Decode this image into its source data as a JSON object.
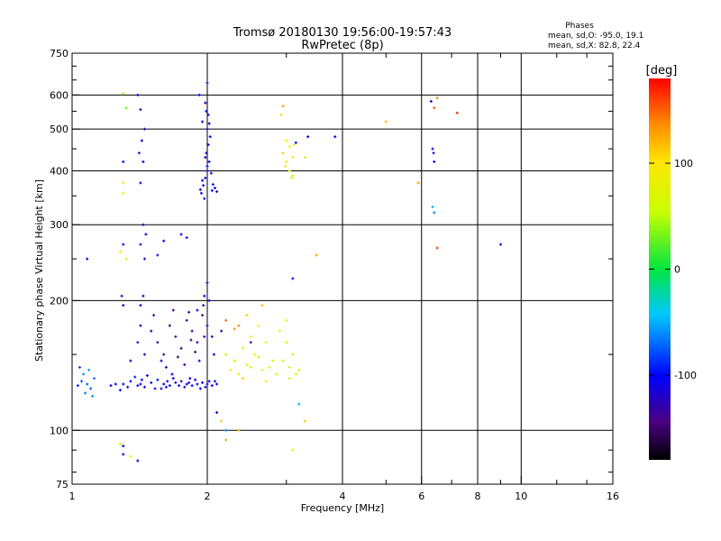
{
  "header": {
    "title": "Tromsø 20180130 19:56:00-19:57:43",
    "subtitle": "RwPretec (8p)",
    "stats_title": "Phases",
    "stats_line1": "mean, sd,O: -95.0, 19.1",
    "stats_line2": "mean, sd,X:  82.8, 22.4"
  },
  "colorbar": {
    "unit_label": "[deg]",
    "ticks": [
      {
        "value": 100,
        "label": "100"
      },
      {
        "value": 0,
        "label": "0"
      },
      {
        "value": -100,
        "label": "-100"
      }
    ],
    "range": [
      -180,
      180
    ]
  },
  "chart_data": {
    "type": "scatter",
    "xlabel": "Frequency [MHz]",
    "ylabel": "Stationary phase Virtual Height [km]",
    "x_scale": "log",
    "y_scale": "log",
    "xlim": [
      1,
      16
    ],
    "ylim": [
      75,
      750
    ],
    "x_ticks": [
      {
        "value": 1,
        "label": "1"
      },
      {
        "value": 2,
        "label": "2"
      },
      {
        "value": 4,
        "label": "4"
      },
      {
        "value": 6,
        "label": "6"
      },
      {
        "value": 8,
        "label": "8"
      },
      {
        "value": 10,
        "label": "10"
      },
      {
        "value": 16,
        "label": "16"
      }
    ],
    "x_grid": [
      2,
      4,
      6,
      8,
      10
    ],
    "y_ticks": [
      {
        "value": 75,
        "label": "75"
      },
      {
        "value": 100,
        "label": "100"
      },
      {
        "value": 200,
        "label": "200"
      },
      {
        "value": 300,
        "label": "300"
      },
      {
        "value": 400,
        "label": "400"
      },
      {
        "value": 500,
        "label": "500"
      },
      {
        "value": 600,
        "label": "600"
      },
      {
        "value": 750,
        "label": "750"
      }
    ],
    "y_grid": [
      100,
      200,
      300,
      400,
      500,
      600
    ],
    "points": [
      [
        1.05,
        130,
        -80
      ],
      [
        1.08,
        128,
        -70
      ],
      [
        1.06,
        135,
        -60
      ],
      [
        1.1,
        125,
        -75
      ],
      [
        1.04,
        140,
        -85
      ],
      [
        1.12,
        132,
        -70
      ],
      [
        1.07,
        122,
        -65
      ],
      [
        1.09,
        138,
        -55
      ],
      [
        1.03,
        127,
        -90
      ],
      [
        1.11,
        120,
        -60
      ],
      [
        1.3,
        128,
        -105
      ],
      [
        1.4,
        127,
        -110
      ],
      [
        1.5,
        129,
        -100
      ],
      [
        1.6,
        128,
        -115
      ],
      [
        1.7,
        129,
        -105
      ],
      [
        1.8,
        128,
        -110
      ],
      [
        1.9,
        128,
        -108
      ],
      [
        2.0,
        128,
        -112
      ],
      [
        2.1,
        128,
        -105
      ],
      [
        1.35,
        130,
        -100
      ],
      [
        1.45,
        126,
        -112
      ],
      [
        1.55,
        131,
        -98
      ],
      [
        1.65,
        127,
        -104
      ],
      [
        1.75,
        130,
        -118
      ],
      [
        1.85,
        127,
        -102
      ],
      [
        1.95,
        129,
        -110
      ],
      [
        2.05,
        127,
        -106
      ],
      [
        1.28,
        124,
        -100
      ],
      [
        1.38,
        133,
        -96
      ],
      [
        1.58,
        125,
        -108
      ],
      [
        1.68,
        132,
        -100
      ],
      [
        1.78,
        126,
        -114
      ],
      [
        1.88,
        131,
        -104
      ],
      [
        1.98,
        126,
        -110
      ],
      [
        1.25,
        128,
        -102
      ],
      [
        1.33,
        126,
        -109
      ],
      [
        1.43,
        131,
        -103
      ],
      [
        1.53,
        125,
        -111
      ],
      [
        1.63,
        130,
        -97
      ],
      [
        1.73,
        127,
        -107
      ],
      [
        1.83,
        132,
        -113
      ],
      [
        1.93,
        125,
        -101
      ],
      [
        2.08,
        130,
        -104
      ],
      [
        1.22,
        127,
        -99
      ],
      [
        1.42,
        128,
        -115
      ],
      [
        1.62,
        126,
        -103
      ],
      [
        1.82,
        129,
        -109
      ],
      [
        2.02,
        130,
        -99
      ],
      [
        1.47,
        134,
        -105
      ],
      [
        1.67,
        135,
        -100
      ],
      [
        1.5,
        170,
        -135
      ],
      [
        1.55,
        160,
        -140
      ],
      [
        1.6,
        150,
        -130
      ],
      [
        1.65,
        175,
        -145
      ],
      [
        1.7,
        165,
        -138
      ],
      [
        1.75,
        155,
        -150
      ],
      [
        1.8,
        180,
        -135
      ],
      [
        1.85,
        170,
        -142
      ],
      [
        1.9,
        160,
        -130
      ],
      [
        1.95,
        185,
        -140
      ],
      [
        2.0,
        175,
        -120
      ],
      [
        2.05,
        165,
        -125
      ],
      [
        1.58,
        145,
        -132
      ],
      [
        1.72,
        148,
        -144
      ],
      [
        1.88,
        152,
        -136
      ],
      [
        1.52,
        185,
        -128
      ],
      [
        1.68,
        190,
        -148
      ],
      [
        1.82,
        188,
        -125
      ],
      [
        1.96,
        195,
        -132
      ],
      [
        2.02,
        200,
        -118
      ],
      [
        1.4,
        160,
        -110
      ],
      [
        1.45,
        150,
        -125
      ],
      [
        1.35,
        145,
        -115
      ],
      [
        1.42,
        175,
        -120
      ],
      [
        1.62,
        140,
        -118
      ],
      [
        1.78,
        142,
        -135
      ],
      [
        1.92,
        145,
        -128
      ],
      [
        2.07,
        150,
        -115
      ],
      [
        1.97,
        165,
        -122
      ],
      [
        1.84,
        162,
        -146
      ],
      [
        1.94,
        355,
        -110
      ],
      [
        1.96,
        370,
        -115
      ],
      [
        1.98,
        385,
        -105
      ],
      [
        2.0,
        400,
        -112
      ],
      [
        2.02,
        420,
        -108
      ],
      [
        1.99,
        440,
        -118
      ],
      [
        2.01,
        460,
        -110
      ],
      [
        2.03,
        480,
        -105
      ],
      [
        2.0,
        500,
        -115
      ],
      [
        1.97,
        345,
        -112
      ],
      [
        2.05,
        360,
        -108
      ],
      [
        2.08,
        365,
        -102
      ],
      [
        2.1,
        358,
        -110
      ],
      [
        2.04,
        395,
        -118
      ],
      [
        1.95,
        380,
        -104
      ],
      [
        2.0,
        410,
        -95
      ],
      [
        1.98,
        430,
        -112
      ],
      [
        2.02,
        515,
        -108
      ],
      [
        1.93,
        362,
        -114
      ],
      [
        2.06,
        372,
        -106
      ],
      [
        1.92,
        600,
        -100
      ],
      [
        1.98,
        575,
        -110
      ],
      [
        2.0,
        640,
        -95
      ],
      [
        1.99,
        550,
        -108
      ],
      [
        2.01,
        540,
        -102
      ],
      [
        1.95,
        520,
        -115
      ],
      [
        1.4,
        600,
        -110
      ],
      [
        1.42,
        555,
        -120
      ],
      [
        1.45,
        500,
        -130
      ],
      [
        1.43,
        470,
        -105
      ],
      [
        1.41,
        440,
        -115
      ],
      [
        1.44,
        420,
        -110
      ],
      [
        1.42,
        375,
        -108
      ],
      [
        1.3,
        420,
        -100
      ],
      [
        1.44,
        300,
        -112
      ],
      [
        1.46,
        285,
        -108
      ],
      [
        1.42,
        270,
        -115
      ],
      [
        1.3,
        270,
        -100
      ],
      [
        1.45,
        250,
        -110
      ],
      [
        1.55,
        255,
        -115
      ],
      [
        1.6,
        275,
        -105
      ],
      [
        1.75,
        285,
        -110
      ],
      [
        1.8,
        280,
        -108
      ],
      [
        1.08,
        250,
        -110
      ],
      [
        1.29,
        205,
        -108
      ],
      [
        1.3,
        195,
        -112
      ],
      [
        1.44,
        205,
        -115
      ],
      [
        1.42,
        195,
        -110
      ],
      [
        1.9,
        190,
        -118
      ],
      [
        1.97,
        205,
        -112
      ],
      [
        2.0,
        220,
        -115
      ],
      [
        3.1,
        225,
        -108
      ],
      [
        2.2,
        150,
        60
      ],
      [
        2.3,
        145,
        70
      ],
      [
        2.4,
        155,
        65
      ],
      [
        2.5,
        140,
        75
      ],
      [
        2.6,
        148,
        60
      ],
      [
        2.25,
        138,
        80
      ],
      [
        2.35,
        135,
        70
      ],
      [
        2.45,
        142,
        60
      ],
      [
        2.55,
        150,
        80
      ],
      [
        2.65,
        138,
        65
      ],
      [
        2.75,
        140,
        70
      ],
      [
        2.85,
        135,
        75
      ],
      [
        2.95,
        145,
        60
      ],
      [
        3.05,
        140,
        65
      ],
      [
        3.15,
        135,
        70
      ],
      [
        2.5,
        165,
        90
      ],
      [
        2.6,
        175,
        100
      ],
      [
        2.7,
        160,
        85
      ],
      [
        2.9,
        170,
        95
      ],
      [
        3.0,
        180,
        75
      ],
      [
        2.45,
        185,
        110
      ],
      [
        2.65,
        195,
        120
      ],
      [
        2.3,
        172,
        130
      ],
      [
        3.0,
        160,
        55
      ],
      [
        3.1,
        150,
        60
      ],
      [
        2.8,
        145,
        70
      ],
      [
        3.05,
        132,
        65
      ],
      [
        3.2,
        138,
        60
      ],
      [
        2.4,
        132,
        110
      ],
      [
        2.7,
        130,
        90
      ],
      [
        2.2,
        180,
        150
      ],
      [
        2.5,
        160,
        -140
      ],
      [
        2.15,
        170,
        -135
      ],
      [
        2.35,
        175,
        140
      ],
      [
        3.0,
        470,
        100
      ],
      [
        2.95,
        440,
        110
      ],
      [
        3.05,
        455,
        95
      ],
      [
        3.1,
        430,
        80
      ],
      [
        3.0,
        420,
        105
      ],
      [
        3.05,
        400,
        70
      ],
      [
        3.1,
        390,
        65
      ],
      [
        3.08,
        385,
        60
      ],
      [
        2.98,
        410,
        85
      ],
      [
        3.12,
        460,
        90
      ],
      [
        2.95,
        565,
        130
      ],
      [
        2.92,
        540,
        105
      ],
      [
        3.15,
        465,
        -100
      ],
      [
        3.3,
        430,
        50
      ],
      [
        3.35,
        480,
        -110
      ],
      [
        3.85,
        480,
        -105
      ],
      [
        3.5,
        255,
        130
      ],
      [
        1.3,
        605,
        40
      ],
      [
        1.32,
        560,
        30
      ],
      [
        1.3,
        375,
        90
      ],
      [
        1.3,
        355,
        85
      ],
      [
        1.28,
        260,
        80
      ],
      [
        1.32,
        250,
        75
      ],
      [
        2.2,
        100,
        -60
      ],
      [
        2.1,
        110,
        -110
      ],
      [
        2.2,
        95,
        130
      ],
      [
        2.15,
        105,
        110
      ],
      [
        2.35,
        100,
        120
      ],
      [
        3.1,
        90,
        70
      ],
      [
        3.3,
        105,
        110
      ],
      [
        1.3,
        88,
        -110
      ],
      [
        1.4,
        85,
        -120
      ],
      [
        1.3,
        92,
        -100
      ],
      [
        1.35,
        87,
        75
      ],
      [
        1.28,
        93,
        50
      ],
      [
        3.2,
        115,
        -45
      ],
      [
        6.3,
        580,
        -115
      ],
      [
        6.5,
        590,
        140
      ],
      [
        6.4,
        560,
        150
      ],
      [
        7.2,
        545,
        170
      ],
      [
        5.0,
        520,
        120
      ],
      [
        6.35,
        450,
        -110
      ],
      [
        6.38,
        440,
        -120
      ],
      [
        6.4,
        420,
        -100
      ],
      [
        5.9,
        375,
        130
      ],
      [
        6.35,
        330,
        -50
      ],
      [
        6.4,
        320,
        -60
      ],
      [
        6.5,
        265,
        160
      ],
      [
        9.0,
        270,
        -100
      ]
    ]
  }
}
